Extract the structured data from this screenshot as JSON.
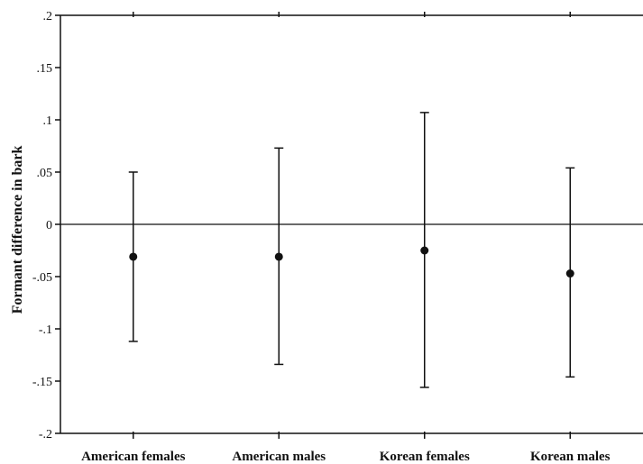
{
  "chart_data": {
    "type": "errorbar",
    "ylabel": "Formant difference in bark",
    "xlabel": "",
    "title": "",
    "ylim": [
      -0.2,
      0.2
    ],
    "yticks": [
      0.2,
      0.15,
      0.1,
      0.05,
      0,
      -0.05,
      -0.1,
      -0.15,
      -0.2
    ],
    "ytick_labels": [
      ".2",
      ".15",
      ".1",
      ".05",
      "0",
      "-.05",
      "-.1",
      "-.15",
      "-.2"
    ],
    "categories": [
      "American females",
      "American males",
      "Korean females",
      "Korean males"
    ],
    "means": [
      -0.031,
      -0.031,
      -0.025,
      -0.047
    ],
    "upper": [
      0.05,
      0.073,
      0.107,
      0.054
    ],
    "lower": [
      -0.112,
      -0.134,
      -0.156,
      -0.146
    ],
    "reference_line": 0,
    "grid": false,
    "colors": {
      "marks": "#111111",
      "axes": "#111111"
    }
  }
}
